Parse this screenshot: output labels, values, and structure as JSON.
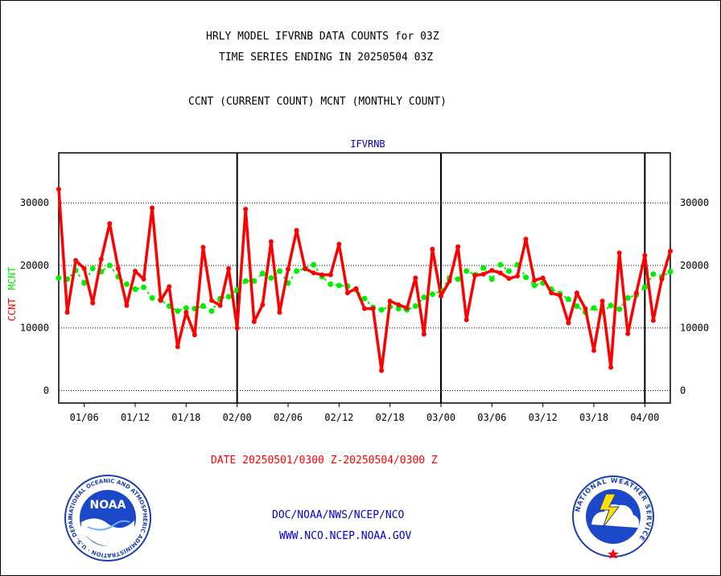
{
  "titles": {
    "line1": "HRLY MODEL IFVRNB DATA COUNTS for 03Z",
    "line2": "TIME SERIES ENDING IN 20250504 03Z",
    "line3": "CCNT (CURRENT COUNT) MCNT (MONTHLY COUNT)"
  },
  "footer": {
    "date_range": "DATE 20250501/0300 Z-20250504/0300 Z",
    "org": "DOC/NOAA/NWS/NCEP/NCO",
    "url": "WWW.NCO.NCEP.NOAA.GOV"
  },
  "logos": {
    "noaa_text": "NOAA",
    "noaa_ring": "NATIONAL OCEANIC AND ATMOSPHERIC ADMINISTRATION · U.S. DEPARTMENT OF COMMERCE",
    "nws_ring": "NATIONAL WEATHER SERVICE"
  },
  "colors": {
    "ccnt": "#ff0000",
    "mcnt": "#00ee00",
    "axis": "#000000",
    "label_blue": "#0000cc"
  },
  "chart_data": {
    "type": "line",
    "title": "IFVRNB",
    "ylabel_left": [
      "CCNT",
      "MCNT"
    ],
    "ylim": [
      -2000,
      38000
    ],
    "yticks": [
      0,
      10000,
      20000,
      30000
    ],
    "ytick_labels": [
      "0",
      "10000",
      "20000",
      "30000"
    ],
    "grid": "horizontal dotted",
    "x_index_range": [
      0,
      72
    ],
    "x_tick_labels": [
      {
        "label": "01/06",
        "i": 3
      },
      {
        "label": "01/12",
        "i": 9
      },
      {
        "label": "01/18",
        "i": 15
      },
      {
        "label": "02/00",
        "i": 21
      },
      {
        "label": "02/06",
        "i": 27
      },
      {
        "label": "02/12",
        "i": 33
      },
      {
        "label": "02/18",
        "i": 39
      },
      {
        "label": "03/00",
        "i": 45
      },
      {
        "label": "03/06",
        "i": 51
      },
      {
        "label": "03/12",
        "i": 57
      },
      {
        "label": "03/18",
        "i": 63
      },
      {
        "label": "04/00",
        "i": 69
      }
    ],
    "day_boundaries": [
      21,
      45,
      69
    ],
    "series": [
      {
        "name": "CCNT",
        "values": [
          32200,
          12500,
          20800,
          19500,
          14000,
          21000,
          26700,
          19500,
          13600,
          19100,
          17800,
          29200,
          14400,
          16600,
          7000,
          12500,
          8900,
          22900,
          14400,
          13600,
          19500,
          10000,
          29000,
          11000,
          13700,
          23800,
          12500,
          19400,
          25600,
          19500,
          18800,
          18500,
          18500,
          23400,
          15600,
          16300,
          13100,
          13100,
          3200,
          14300,
          13700,
          13200,
          18000,
          9000,
          22600,
          15100,
          17500,
          23000,
          11300,
          18400,
          18600,
          19200,
          18800,
          17900,
          18300,
          24200,
          17600,
          18000,
          15600,
          15200,
          10800,
          15600,
          13100,
          6400,
          14300,
          3700,
          22000,
          9100,
          15600,
          21600,
          11200,
          17800,
          22300
        ]
      },
      {
        "name": "MCNT",
        "values": [
          18000,
          17800,
          19200,
          17200,
          19500,
          19000,
          20000,
          18200,
          17000,
          16200,
          16500,
          14800,
          14500,
          13500,
          12700,
          13200,
          13100,
          13500,
          12700,
          14700,
          15000,
          16100,
          17500,
          17500,
          18700,
          18000,
          19100,
          17200,
          19100,
          19500,
          20100,
          18200,
          17000,
          16800,
          16700,
          16100,
          14700,
          13300,
          12900,
          13400,
          13100,
          12900,
          13500,
          14900,
          15400,
          15900,
          18000,
          17800,
          19100,
          18500,
          19600,
          17800,
          20100,
          19100,
          20100,
          18100,
          16800,
          17200,
          16200,
          15500,
          14600,
          13500,
          12500,
          13200,
          12500,
          13600,
          13000,
          14800,
          15300,
          16500,
          18600,
          18200,
          19000
        ]
      }
    ]
  }
}
